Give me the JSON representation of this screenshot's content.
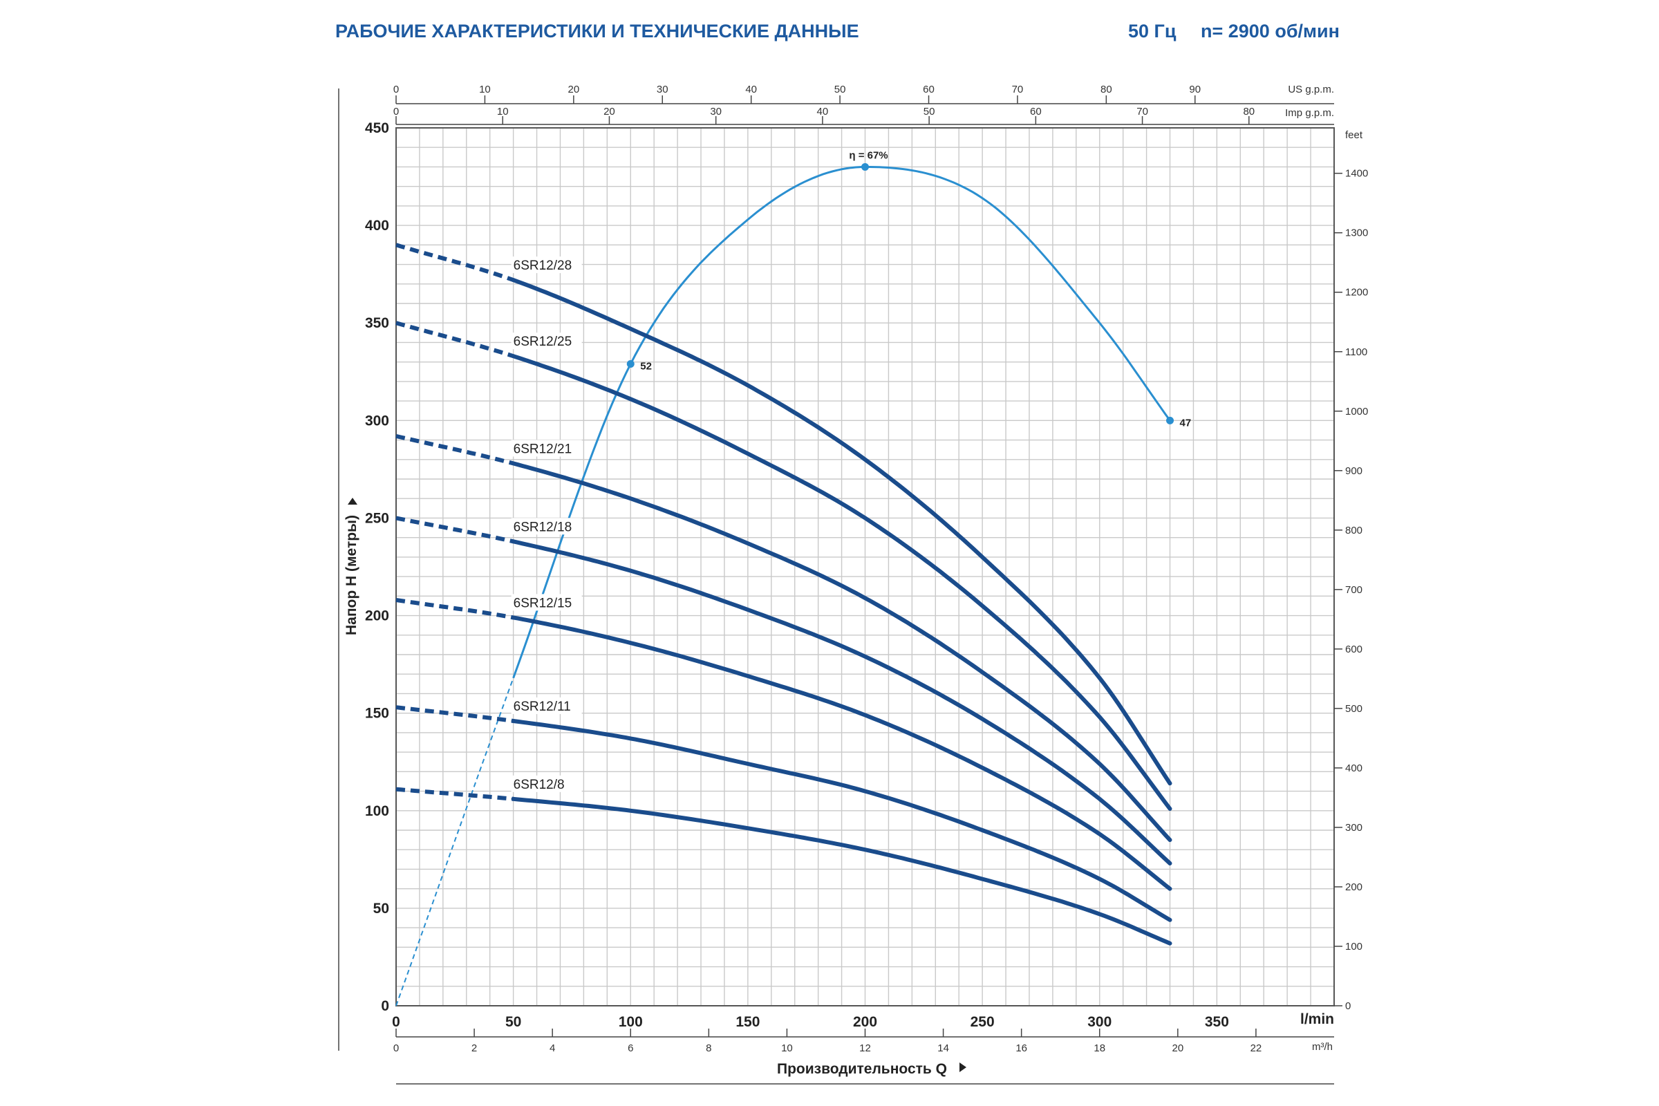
{
  "header": {
    "title": "РАБОЧИЕ ХАРАКТЕРИСТИКИ И ТЕХНИЧЕСКИЕ ДАННЫЕ",
    "frequency": "50 Гц",
    "speed": "n= 2900 об/мин"
  },
  "chart_data": {
    "type": "line",
    "title": "",
    "xlabel": "Производительность Q",
    "ylabel": "Напор H (метры)",
    "x_unit": "l/min",
    "y_unit": "m",
    "xlim": [
      0,
      400
    ],
    "ylim": [
      0,
      450
    ],
    "grid": true,
    "legend": "none",
    "secondary_axes": {
      "us_gpm": {
        "unit": "US g.p.m.",
        "ticks": [
          0,
          10,
          20,
          30,
          40,
          50,
          60,
          70,
          80,
          90
        ]
      },
      "imp_gpm": {
        "unit": "Imp g.p.m.",
        "ticks": [
          0,
          10,
          20,
          30,
          40,
          50,
          60,
          70,
          80
        ]
      },
      "m3h": {
        "unit": "m³/h",
        "ticks": [
          0,
          2,
          4,
          6,
          8,
          10,
          12,
          14,
          16,
          18,
          20,
          22
        ]
      },
      "feet": {
        "unit": "feet",
        "ticks": [
          0,
          100,
          200,
          300,
          400,
          500,
          600,
          700,
          800,
          900,
          1000,
          1100,
          1200,
          1300,
          1400
        ]
      }
    },
    "x_ticks": [
      0,
      50,
      100,
      150,
      200,
      250,
      300,
      350
    ],
    "y_ticks": [
      0,
      50,
      100,
      150,
      200,
      250,
      300,
      350,
      400,
      450
    ],
    "series": [
      {
        "name": "6SR12/28",
        "color": "#1a4c8c",
        "x": [
          0,
          50,
          100,
          150,
          200,
          250,
          300,
          330
        ],
        "y": [
          390,
          372,
          347,
          318,
          280,
          230,
          168,
          114
        ]
      },
      {
        "name": "6SR12/25",
        "color": "#1a4c8c",
        "x": [
          0,
          50,
          100,
          150,
          200,
          250,
          300,
          330
        ],
        "y": [
          350,
          333,
          311,
          283,
          250,
          205,
          148,
          101
        ]
      },
      {
        "name": "6SR12/21",
        "color": "#1a4c8c",
        "x": [
          0,
          50,
          100,
          150,
          200,
          250,
          300,
          330
        ],
        "y": [
          292,
          278,
          260,
          237,
          209,
          171,
          124,
          85
        ]
      },
      {
        "name": "6SR12/18",
        "color": "#1a4c8c",
        "x": [
          0,
          50,
          100,
          150,
          200,
          250,
          300,
          330
        ],
        "y": [
          250,
          238,
          223,
          203,
          179,
          147,
          106,
          73
        ]
      },
      {
        "name": "6SR12/15",
        "color": "#1a4c8c",
        "x": [
          0,
          50,
          100,
          150,
          200,
          250,
          300,
          330
        ],
        "y": [
          208,
          199,
          186,
          169,
          149,
          122,
          88,
          60
        ]
      },
      {
        "name": "6SR12/11",
        "color": "#1a4c8c",
        "x": [
          0,
          50,
          100,
          150,
          200,
          250,
          300,
          330
        ],
        "y": [
          153,
          146,
          137,
          124,
          110,
          90,
          65,
          44
        ]
      },
      {
        "name": "6SR12/8",
        "color": "#1a4c8c",
        "x": [
          0,
          50,
          100,
          150,
          200,
          250,
          300,
          330
        ],
        "y": [
          111,
          106,
          100,
          91,
          80,
          65,
          47,
          32
        ]
      }
    ],
    "efficiency_curve": {
      "color": "#2a8fd0",
      "x": [
        0,
        50,
        100,
        150,
        200,
        250,
        300,
        330
      ],
      "y": [
        0,
        168,
        329,
        403,
        430,
        414,
        350,
        300
      ],
      "markers": [
        {
          "x": 100,
          "y": 329,
          "label": "52"
        },
        {
          "x": 200,
          "y": 430,
          "label": "η = 67%"
        },
        {
          "x": 330,
          "y": 300,
          "label": "47"
        }
      ]
    }
  }
}
